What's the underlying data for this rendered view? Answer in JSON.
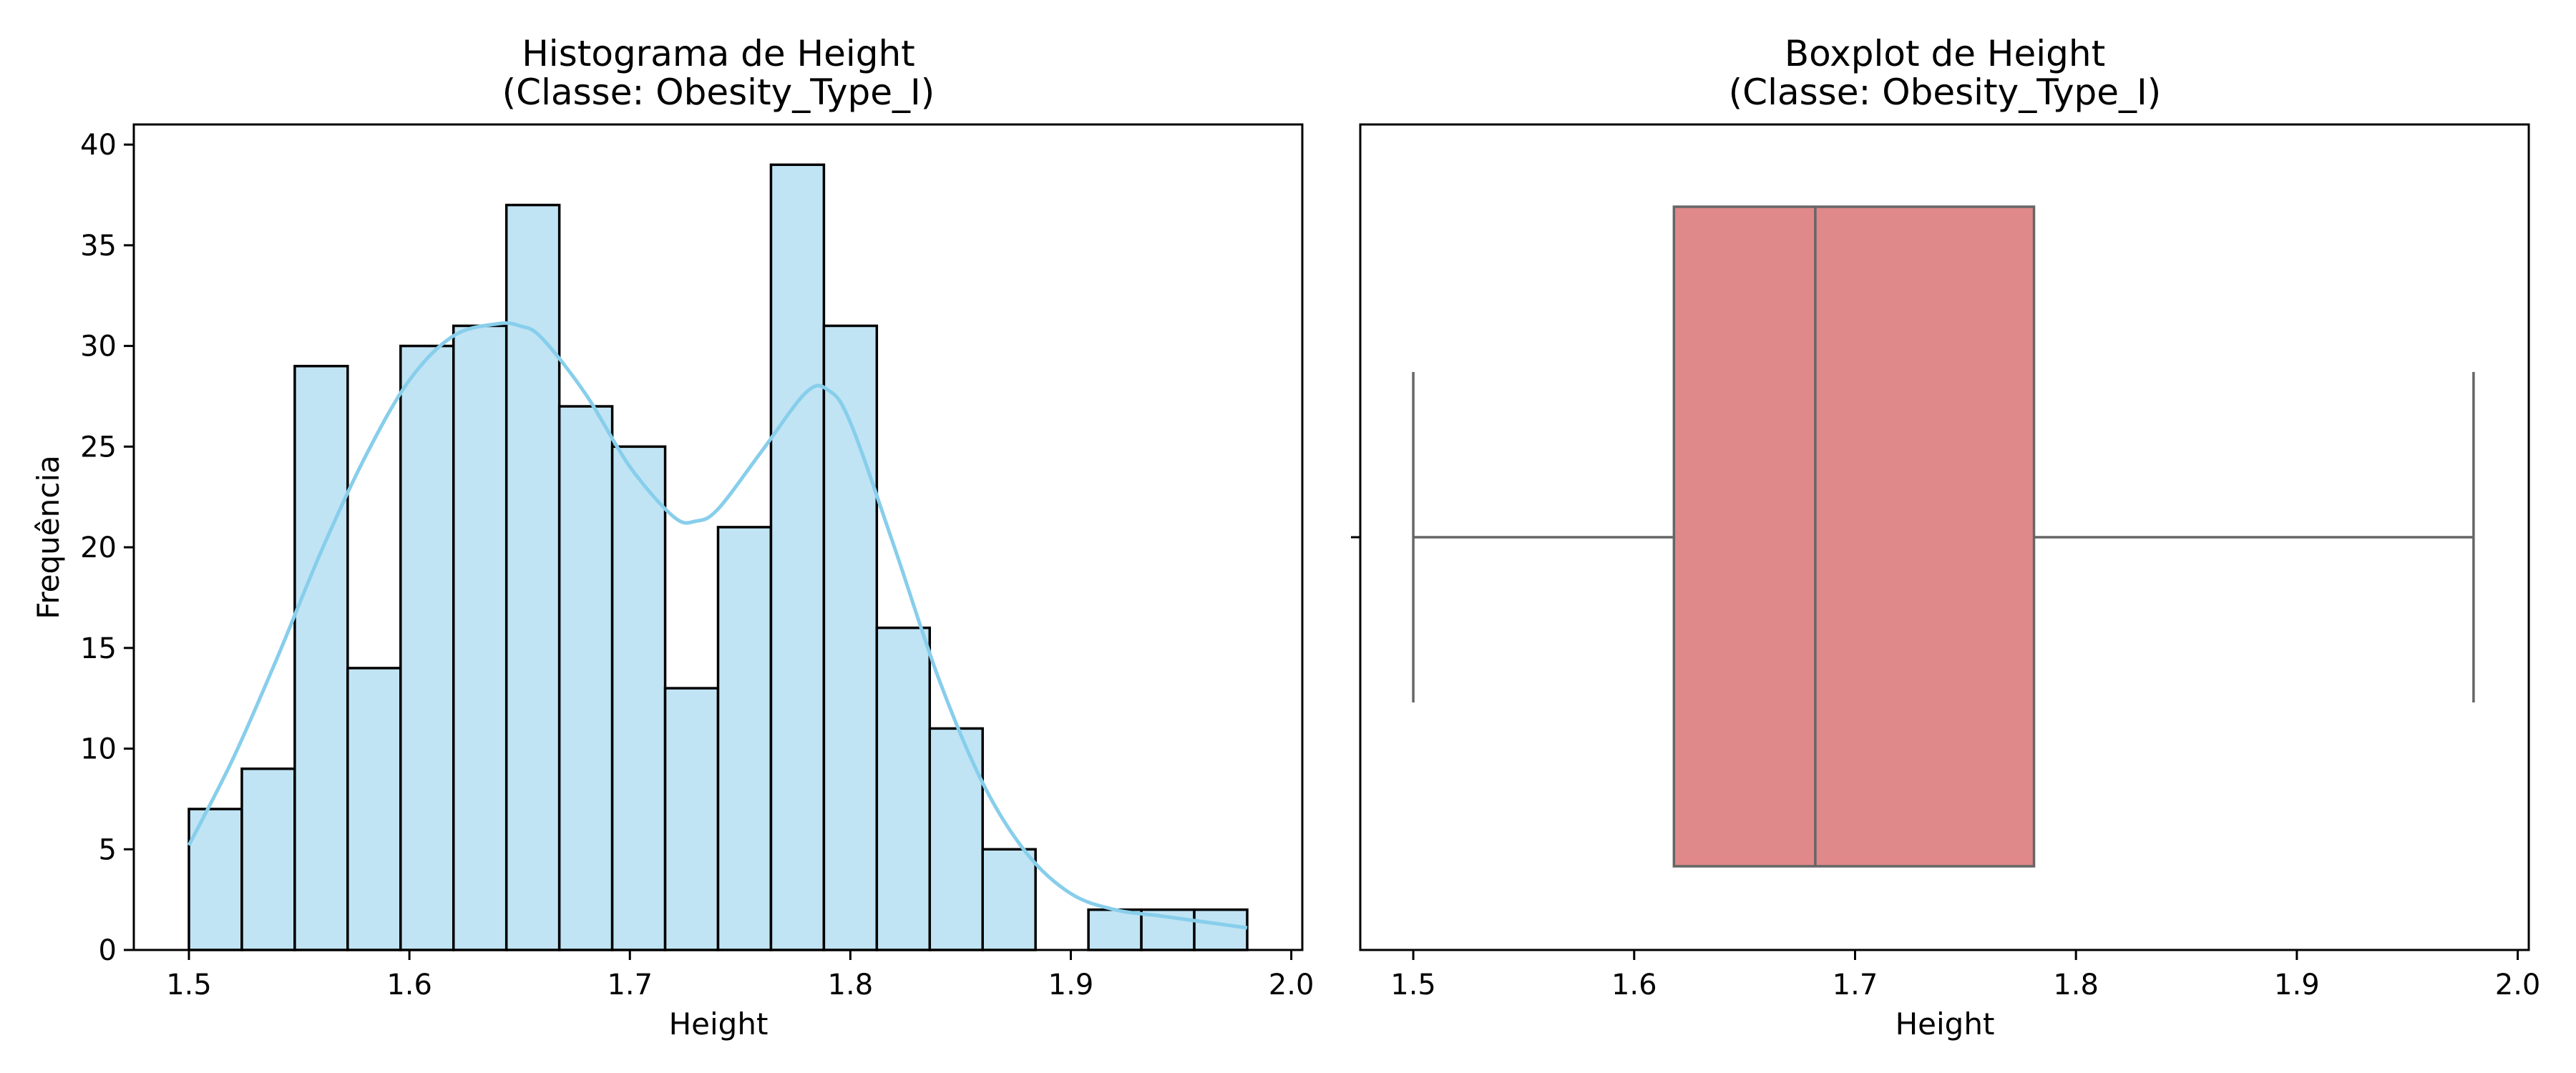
{
  "chart_data": [
    {
      "type": "bar",
      "subtype": "histogram",
      "title": [
        "Histograma de Height",
        "(Classe: Obesity_Type_I)"
      ],
      "xlabel": "Height",
      "ylabel": "Frequência",
      "xlim": [
        1.475,
        2.005
      ],
      "ylim": [
        0,
        41
      ],
      "xticks": [
        1.5,
        1.6,
        1.7,
        1.8,
        1.9,
        2.0
      ],
      "xtick_labels": [
        "1.5",
        "1.6",
        "1.7",
        "1.8",
        "1.9",
        "2.0"
      ],
      "yticks": [
        0,
        5,
        10,
        15,
        20,
        25,
        30,
        35,
        40
      ],
      "ytick_labels": [
        "0",
        "5",
        "10",
        "15",
        "20",
        "25",
        "30",
        "35",
        "40"
      ],
      "bin_start": 1.5,
      "bin_end": 1.98,
      "counts": [
        7,
        9,
        29,
        14,
        30,
        31,
        37,
        27,
        25,
        13,
        21,
        39,
        31,
        16,
        11,
        5,
        0,
        2,
        2,
        2
      ],
      "kde": {
        "x": [
          1.5,
          1.52,
          1.54,
          1.56,
          1.58,
          1.6,
          1.62,
          1.64,
          1.65,
          1.66,
          1.68,
          1.7,
          1.72,
          1.73,
          1.74,
          1.76,
          1.78,
          1.79,
          1.8,
          1.82,
          1.84,
          1.86,
          1.88,
          1.9,
          1.92,
          1.94,
          1.96,
          1.98
        ],
        "y": [
          5.2,
          9.5,
          14.5,
          19.8,
          24.5,
          28.3,
          30.5,
          31.1,
          31.0,
          30.4,
          27.6,
          24.0,
          21.5,
          21.3,
          21.9,
          24.8,
          27.7,
          27.8,
          26.2,
          20.0,
          13.5,
          8.3,
          4.8,
          2.8,
          2.0,
          1.7,
          1.4,
          1.1
        ]
      },
      "bar_color": "#c0e4f4",
      "edge_color": "#000000",
      "kde_color": "#87ceeb"
    },
    {
      "type": "box",
      "title": [
        "Boxplot de Height",
        "(Classe: Obesity_Type_I)"
      ],
      "xlabel": "Height",
      "xlim": [
        1.476,
        2.005
      ],
      "xticks": [
        1.5,
        1.6,
        1.7,
        1.8,
        1.9,
        2.0
      ],
      "xtick_labels": [
        "1.5",
        "1.6",
        "1.7",
        "1.8",
        "1.9",
        "2.0"
      ],
      "whisker_low": 1.5,
      "q1": 1.618,
      "median": 1.682,
      "q3": 1.781,
      "whisker_high": 1.98,
      "box_color": "#e0898a",
      "line_color": "#666666"
    }
  ]
}
